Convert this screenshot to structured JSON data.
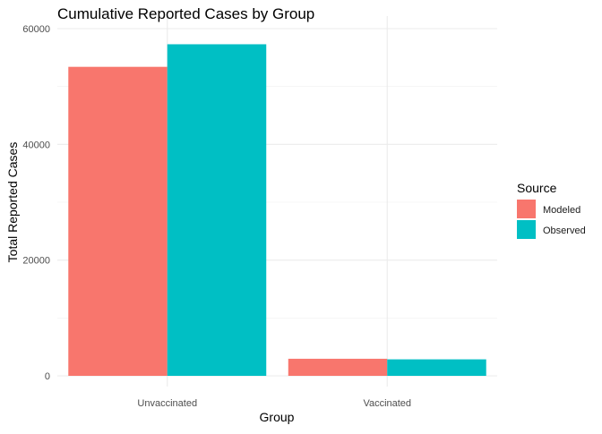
{
  "chart_data": {
    "type": "bar",
    "title": "Cumulative Reported Cases by Group",
    "xlabel": "Group",
    "ylabel": "Total Reported Cases",
    "categories": [
      "Unvaccinated",
      "Vaccinated"
    ],
    "series": [
      {
        "name": "Modeled",
        "values": [
          53400,
          2950
        ],
        "color": "#F8766D"
      },
      {
        "name": "Observed",
        "values": [
          57300,
          2850
        ],
        "color": "#00BFC4"
      }
    ],
    "ylim": [
      0,
      60000
    ],
    "yticks": [
      0,
      20000,
      40000,
      60000
    ],
    "ytick_labels": [
      "0",
      "20000",
      "40000",
      "60000"
    ],
    "grid": true,
    "legend": {
      "title": "Source",
      "placement": "right",
      "entries": [
        "Modeled",
        "Observed"
      ]
    }
  }
}
